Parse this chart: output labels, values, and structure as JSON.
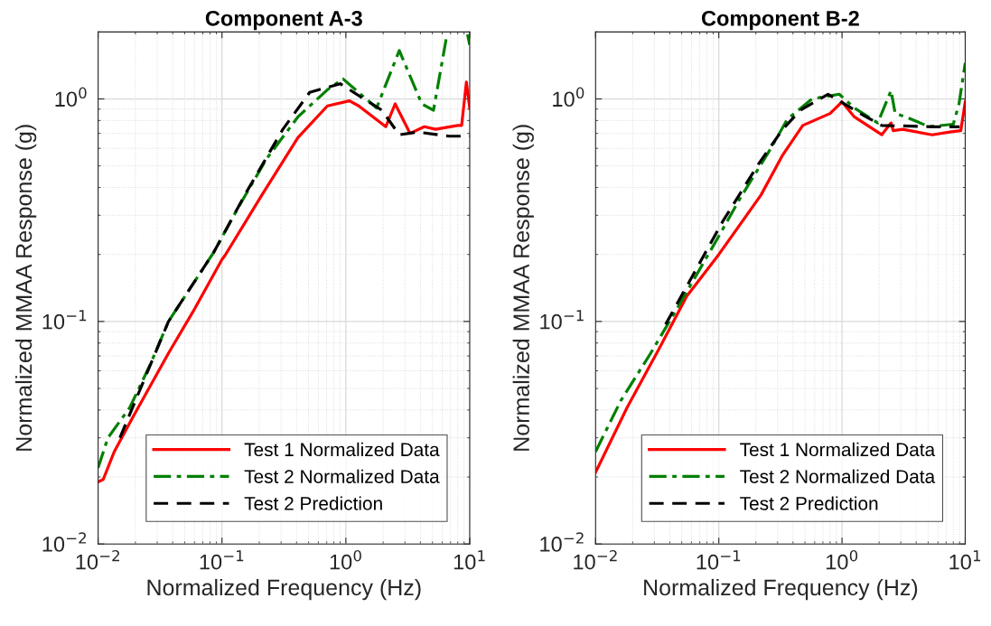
{
  "chart_data": [
    {
      "type": "line",
      "title": "Component A-3",
      "xlabel": "Normalized Frequency (Hz)",
      "ylabel": "Normalized MMAA Response (g)",
      "log": "xy",
      "grid": true,
      "legend": "bottom right",
      "xlim": [
        0.01,
        10
      ],
      "ylim": [
        0.01,
        2
      ],
      "xticks": [
        {
          "value": 0.01,
          "label": "10$^{−2}$"
        },
        {
          "value": 0.1,
          "label": "10$^{−1}$"
        },
        {
          "value": 1,
          "label": "10$^{0}$"
        },
        {
          "value": 10,
          "label": "10$^{1}$"
        }
      ],
      "yticks": [
        {
          "value": 0.01,
          "label": "10$^{−2}$"
        },
        {
          "value": 0.1,
          "label": "10$^{−1}$"
        },
        {
          "value": 1,
          "label": "10$^{0}$"
        }
      ],
      "series": [
        {
          "name": "Test 1 Normalized Data",
          "color": "#ff0000",
          "line_style": "solid",
          "x": [
            0.01,
            0.011,
            0.0135,
            0.019,
            0.037,
            0.058,
            0.1,
            0.107,
            0.21,
            0.41,
            0.71,
            1.07,
            1.27,
            2.1,
            2.5,
            3.3,
            4.3,
            5.3,
            8.0,
            8.6,
            9.4,
            10
          ],
          "values": [
            0.019,
            0.0195,
            0.026,
            0.037,
            0.072,
            0.11,
            0.19,
            0.2,
            0.37,
            0.67,
            0.93,
            0.98,
            0.93,
            0.75,
            0.95,
            0.7,
            0.75,
            0.73,
            0.76,
            0.76,
            1.19,
            0.91
          ]
        },
        {
          "name": "Test 2 Normalized Data",
          "color": "#008000",
          "line_style": "dashdot",
          "x": [
            0.01,
            0.012,
            0.018,
            0.026,
            0.037,
            0.086,
            0.133,
            0.23,
            0.41,
            0.71,
            0.95,
            1.77,
            2.7,
            4.1,
            5.1,
            6.5,
            6.8,
            9.6,
            10
          ],
          "values": [
            0.022,
            0.03,
            0.041,
            0.063,
            0.1,
            0.205,
            0.32,
            0.54,
            0.83,
            1.1,
            1.23,
            0.91,
            1.65,
            0.95,
            0.89,
            1.9,
            null,
            1.95,
            1.75
          ]
        },
        {
          "name": "Test 2 Prediction",
          "color": "#000000",
          "line_style": "dashed",
          "x": [
            0.015,
            0.037,
            0.086,
            0.157,
            0.31,
            0.51,
            0.9,
            1.95,
            2.7,
            3.8,
            6.8,
            10
          ],
          "values": [
            0.03,
            0.1,
            0.205,
            0.38,
            0.73,
            1.07,
            1.17,
            0.89,
            0.69,
            0.71,
            0.68,
            0.68
          ]
        }
      ]
    },
    {
      "type": "line",
      "title": "Component B-2",
      "xlabel": "Normalized Frequency (Hz)",
      "ylabel": "Normalized MMAA Response (g)",
      "log": "xy",
      "grid": true,
      "legend": "bottom right",
      "xlim": [
        0.01,
        10
      ],
      "ylim": [
        0.01,
        2
      ],
      "xticks": [
        {
          "value": 0.01,
          "label": "10$^{−2}$"
        },
        {
          "value": 0.1,
          "label": "10$^{−1}$"
        },
        {
          "value": 1,
          "label": "10$^{0}$"
        },
        {
          "value": 10,
          "label": "10$^{1}$"
        }
      ],
      "yticks": [
        {
          "value": 0.01,
          "label": "10$^{−2}$"
        },
        {
          "value": 0.1,
          "label": "10$^{−1}$"
        },
        {
          "value": 1,
          "label": "10$^{0}$"
        }
      ],
      "series": [
        {
          "name": "Test 1 Normalized Data",
          "color": "#ff0000",
          "line_style": "solid",
          "x": [
            0.01,
            0.018,
            0.033,
            0.055,
            0.1,
            0.22,
            0.33,
            0.48,
            0.8,
            1.0,
            1.26,
            2.1,
            2.5,
            2.6,
            3.1,
            5.4,
            7.5,
            9.2,
            10
          ],
          "values": [
            0.021,
            0.041,
            0.076,
            0.13,
            0.2,
            0.37,
            0.56,
            0.76,
            0.86,
            0.97,
            0.83,
            0.69,
            0.78,
            0.72,
            0.73,
            0.69,
            0.71,
            0.72,
            0.97
          ]
        },
        {
          "name": "Test 2 Normalized Data",
          "color": "#008000",
          "line_style": "dashdot",
          "x": [
            0.01,
            0.016,
            0.028,
            0.044,
            0.095,
            0.15,
            0.26,
            0.36,
            0.57,
            0.95,
            1.26,
            1.95,
            2.5,
            2.7,
            3.3,
            5.1,
            8.0,
            8.9,
            10
          ],
          "values": [
            0.026,
            0.044,
            0.072,
            0.11,
            0.23,
            0.36,
            0.59,
            0.81,
            1.0,
            1.05,
            0.91,
            0.78,
            1.09,
            0.86,
            0.83,
            0.75,
            0.77,
            0.95,
            1.45
          ]
        },
        {
          "name": "Test 2 Prediction",
          "color": "#000000",
          "line_style": "dashed",
          "x": [
            0.037,
            0.107,
            0.21,
            0.33,
            0.46,
            0.77,
            1.57,
            2.1,
            5.4,
            9.0
          ],
          "values": [
            0.097,
            0.28,
            0.51,
            0.73,
            0.89,
            1.05,
            0.83,
            0.76,
            0.75,
            0.75
          ]
        }
      ]
    }
  ]
}
